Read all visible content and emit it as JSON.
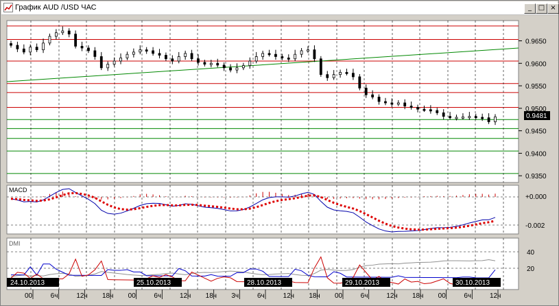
{
  "window": {
    "title": "График AUD /USD  ЧАС",
    "controls": {
      "minimize": "_",
      "maximize": "□",
      "close": "×"
    }
  },
  "colors": {
    "background": "#ffffff",
    "grid": "#000000",
    "price_bar": "#000000",
    "level_line_red": "#cc0000",
    "level_line_green": "#008800",
    "trend_line": "#008800",
    "macd_line": "#0000aa",
    "macd_signal": "#dd0000",
    "macd_histogram": "#cc0000",
    "dmi_plus": "#0000cc",
    "dmi_minus": "#cc0000",
    "dmi_adx": "#808080"
  },
  "price_panel": {
    "y_ticks": [
      "0.9650",
      "0.9600",
      "0.9550",
      "0.9500",
      "0.9450",
      "0.9400",
      "0.9350"
    ],
    "current_price": "0.9481",
    "red_levels": [
      0.9683,
      0.9653,
      0.9605,
      0.9555,
      0.9535,
      0.9502
    ],
    "green_levels": [
      0.9475,
      0.9455,
      0.9433,
      0.9405,
      0.9355
    ]
  },
  "macd_panel": {
    "label": "MACD",
    "y_ticks": [
      "+0.000",
      "-0.002"
    ]
  },
  "dmi_panel": {
    "label": "DMI",
    "y_ticks": [
      "40",
      "20"
    ]
  },
  "date_labels": [
    "24.10.2013",
    "25.10.2013",
    "28.10.2013",
    "29.10.2013",
    "30.10.2013"
  ],
  "time_labels": [
    "00",
    "6ч",
    "12ч",
    "18ч",
    "00",
    "6ч",
    "12ч",
    "18ч",
    "3ч",
    "6ч",
    "12ч",
    "18ч",
    "00",
    "6ч",
    "12ч",
    "18ч",
    "00",
    "6ч",
    "12ч"
  ],
  "chart_data": {
    "type": "ohlc",
    "instrument": "AUD/USD",
    "timeframe": "1H",
    "ylim": [
      0.9335,
      0.9695
    ],
    "close_estimates": [
      0.964,
      0.9632,
      0.9625,
      0.9636,
      0.963,
      0.9645,
      0.966,
      0.9668,
      0.9672,
      0.9665,
      0.9638,
      0.9634,
      0.9628,
      0.9615,
      0.959,
      0.9598,
      0.9605,
      0.9612,
      0.962,
      0.9625,
      0.963,
      0.9628,
      0.9622,
      0.9618,
      0.961,
      0.9605,
      0.9615,
      0.9622,
      0.961,
      0.9602,
      0.9598,
      0.96,
      0.9596,
      0.959,
      0.9585,
      0.959,
      0.9595,
      0.9605,
      0.9615,
      0.9622,
      0.962,
      0.9615,
      0.9612,
      0.961,
      0.962,
      0.9628,
      0.963,
      0.961,
      0.9575,
      0.9568,
      0.9575,
      0.958,
      0.9578,
      0.957,
      0.9545,
      0.953,
      0.9525,
      0.9515,
      0.9512,
      0.951,
      0.9512,
      0.9505,
      0.9502,
      0.9498,
      0.9497,
      0.9495,
      0.949,
      0.9482,
      0.948,
      0.948,
      0.9481,
      0.9482,
      0.948,
      0.9479,
      0.947,
      0.9481
    ]
  }
}
